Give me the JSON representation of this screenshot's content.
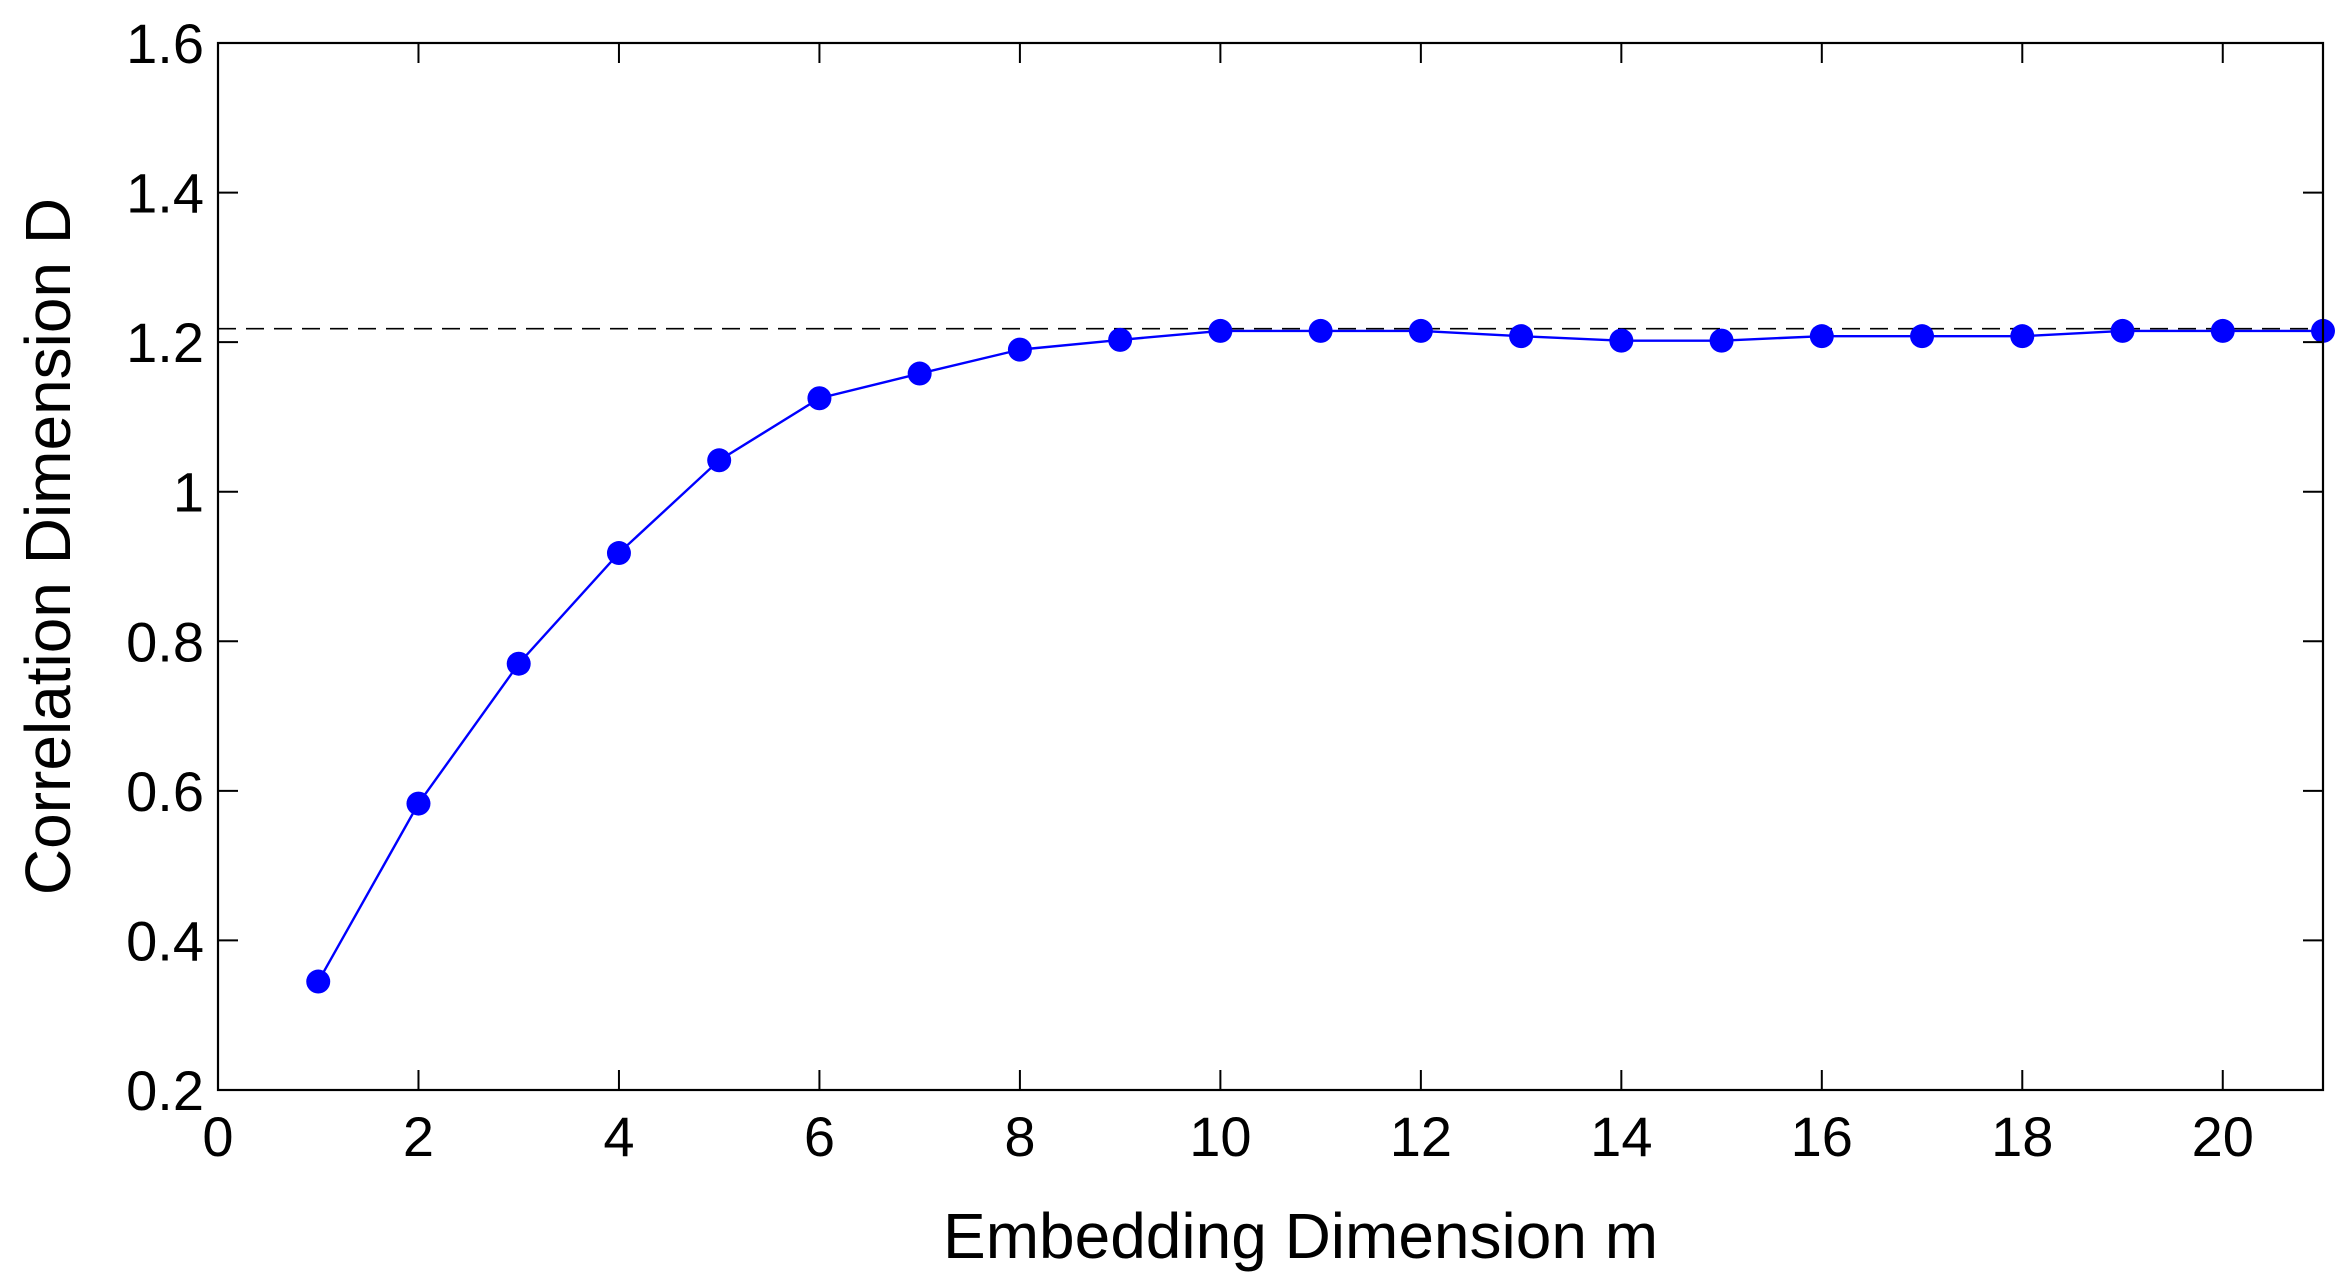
{
  "chart_data": {
    "type": "line",
    "title": "",
    "xlabel": "Embedding Dimension  m",
    "ylabel": "Correlation Dimension  D",
    "xlim": [
      0,
      21
    ],
    "ylim": [
      0.2,
      1.6
    ],
    "xticks": [
      0,
      2,
      4,
      6,
      8,
      10,
      12,
      14,
      16,
      18,
      20
    ],
    "xtick_labels": [
      "0",
      "2",
      "4",
      "6",
      "8",
      "10",
      "12",
      "14",
      "16",
      "18",
      "20"
    ],
    "yticks": [
      0.2,
      0.4,
      0.6,
      0.8,
      1.0,
      1.2,
      1.4,
      1.6
    ],
    "ytick_labels": [
      "0.2",
      "0.4",
      "0.6",
      "0.8",
      "1",
      "1.2",
      "1.4",
      "1.6"
    ],
    "grid": false,
    "legend": "none",
    "series": [
      {
        "marker": "filled-circle",
        "color": "#0000ff",
        "x": [
          1,
          2,
          3,
          4,
          5,
          6,
          7,
          8,
          9,
          10,
          11,
          12,
          13,
          14,
          15,
          16,
          17,
          18,
          19,
          20,
          21
        ],
        "values": [
          0.345,
          0.583,
          0.77,
          0.918,
          1.042,
          1.125,
          1.158,
          1.19,
          1.203,
          1.215,
          1.215,
          1.215,
          1.208,
          1.202,
          1.202,
          1.208,
          1.208,
          1.208,
          1.215,
          1.215,
          1.215
        ]
      }
    ],
    "reference_lines": [
      {
        "orientation": "horizontal",
        "y": 1.218,
        "style": "dashed",
        "color": "#000000"
      }
    ]
  }
}
